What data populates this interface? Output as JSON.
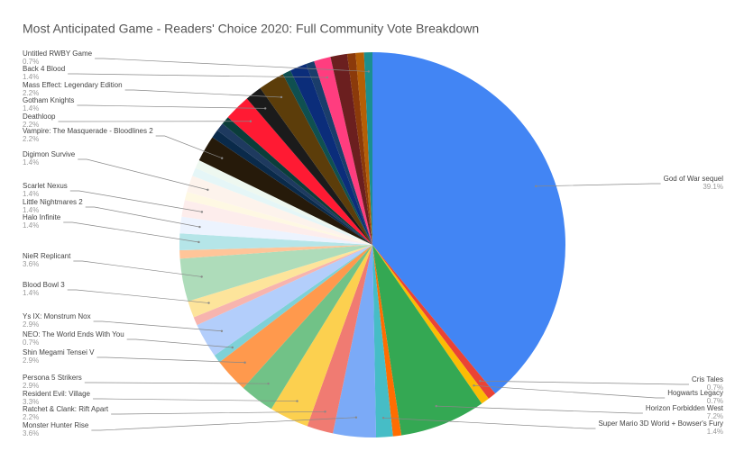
{
  "chart_data": {
    "type": "pie",
    "title": "Most Anticipated Game - Readers' Choice 2020: Full Community Vote Breakdown",
    "categories": [
      "God of War sequel",
      "Cris Tales",
      "Hogwarts Legacy",
      "Horizon Forbidden West",
      null,
      "Super Mario 3D World + Bowser's Fury",
      "Monster Hunter Rise",
      "Ratchet & Clank: Rift Apart",
      "Resident Evil: Village",
      "Persona 5 Strikers",
      "Shin Megami Tensei V",
      "NEO: The World Ends With You",
      "Ys IX: Monstrum Nox",
      null,
      "Blood Bowl 3",
      "NieR Replicant",
      null,
      "Halo Infinite",
      "Little Nightmares 2",
      "Scarlet Nexus",
      null,
      "Digimon Survive",
      null,
      null,
      "Vampire: The Masquerade - Bloodlines 2",
      null,
      null,
      null,
      "Deathloop",
      "Gotham Knights",
      "Mass Effect: Legendary Edition",
      null,
      null,
      null,
      "Back 4 Blood",
      null,
      null,
      null,
      "Untitled RWBY Game"
    ],
    "values": [
      39.1,
      0.7,
      0.7,
      7.2,
      0.7,
      1.4,
      3.6,
      2.2,
      3.3,
      2.9,
      2.9,
      0.7,
      2.9,
      0.7,
      1.4,
      3.6,
      0.7,
      1.4,
      1.4,
      1.4,
      0.7,
      1.4,
      0.7,
      0.7,
      2.2,
      0.7,
      0.7,
      0.7,
      2.2,
      1.4,
      2.2,
      0.7,
      1.4,
      0.7,
      1.4,
      1.4,
      0.7,
      0.7,
      0.7
    ],
    "value_labels": [
      "39.1%",
      "0.7%",
      "0.7%",
      "7.2%",
      null,
      "1.4%",
      "3.6%",
      "2.2%",
      "3.3%",
      "2.9%",
      "2.9%",
      "0.7%",
      "2.9%",
      null,
      "1.4%",
      "3.6%",
      null,
      "1.4%",
      "1.4%",
      "1.4%",
      null,
      "1.4%",
      null,
      null,
      "2.2%",
      null,
      null,
      null,
      "2.2%",
      "1.4%",
      "2.2%",
      null,
      null,
      null,
      "1.4%",
      null,
      null,
      null,
      "0.7%"
    ],
    "colors": [
      "#4285f4",
      "#ea4335",
      "#fbbc04",
      "#34a853",
      "#ff6d01",
      "#46bdc6",
      "#7baaf7",
      "#f07b72",
      "#fcd04f",
      "#71c287",
      "#ff994d",
      "#7ed1d7",
      "#b3cefb",
      "#f7b4ae",
      "#fde49b",
      "#aedcba",
      "#ffc599",
      "#b5e5e8",
      "#ecf3fe",
      "#fdedec",
      "#fef8e3",
      "#fdf3ec",
      "#e5f6f7",
      "#eef8f0",
      "#261a0a",
      "#0a2a4a",
      "#1e3a5f",
      "#0b3d3a",
      "#ff1a33",
      "#1b1b1b",
      "#5c3d0a",
      "#0f5050",
      "#0b2d7a",
      "#1a3d6b",
      "#ff3d7f",
      "#6b1f1f",
      "#8b3a0a",
      "#b45f06",
      "#1b8f8f"
    ]
  }
}
